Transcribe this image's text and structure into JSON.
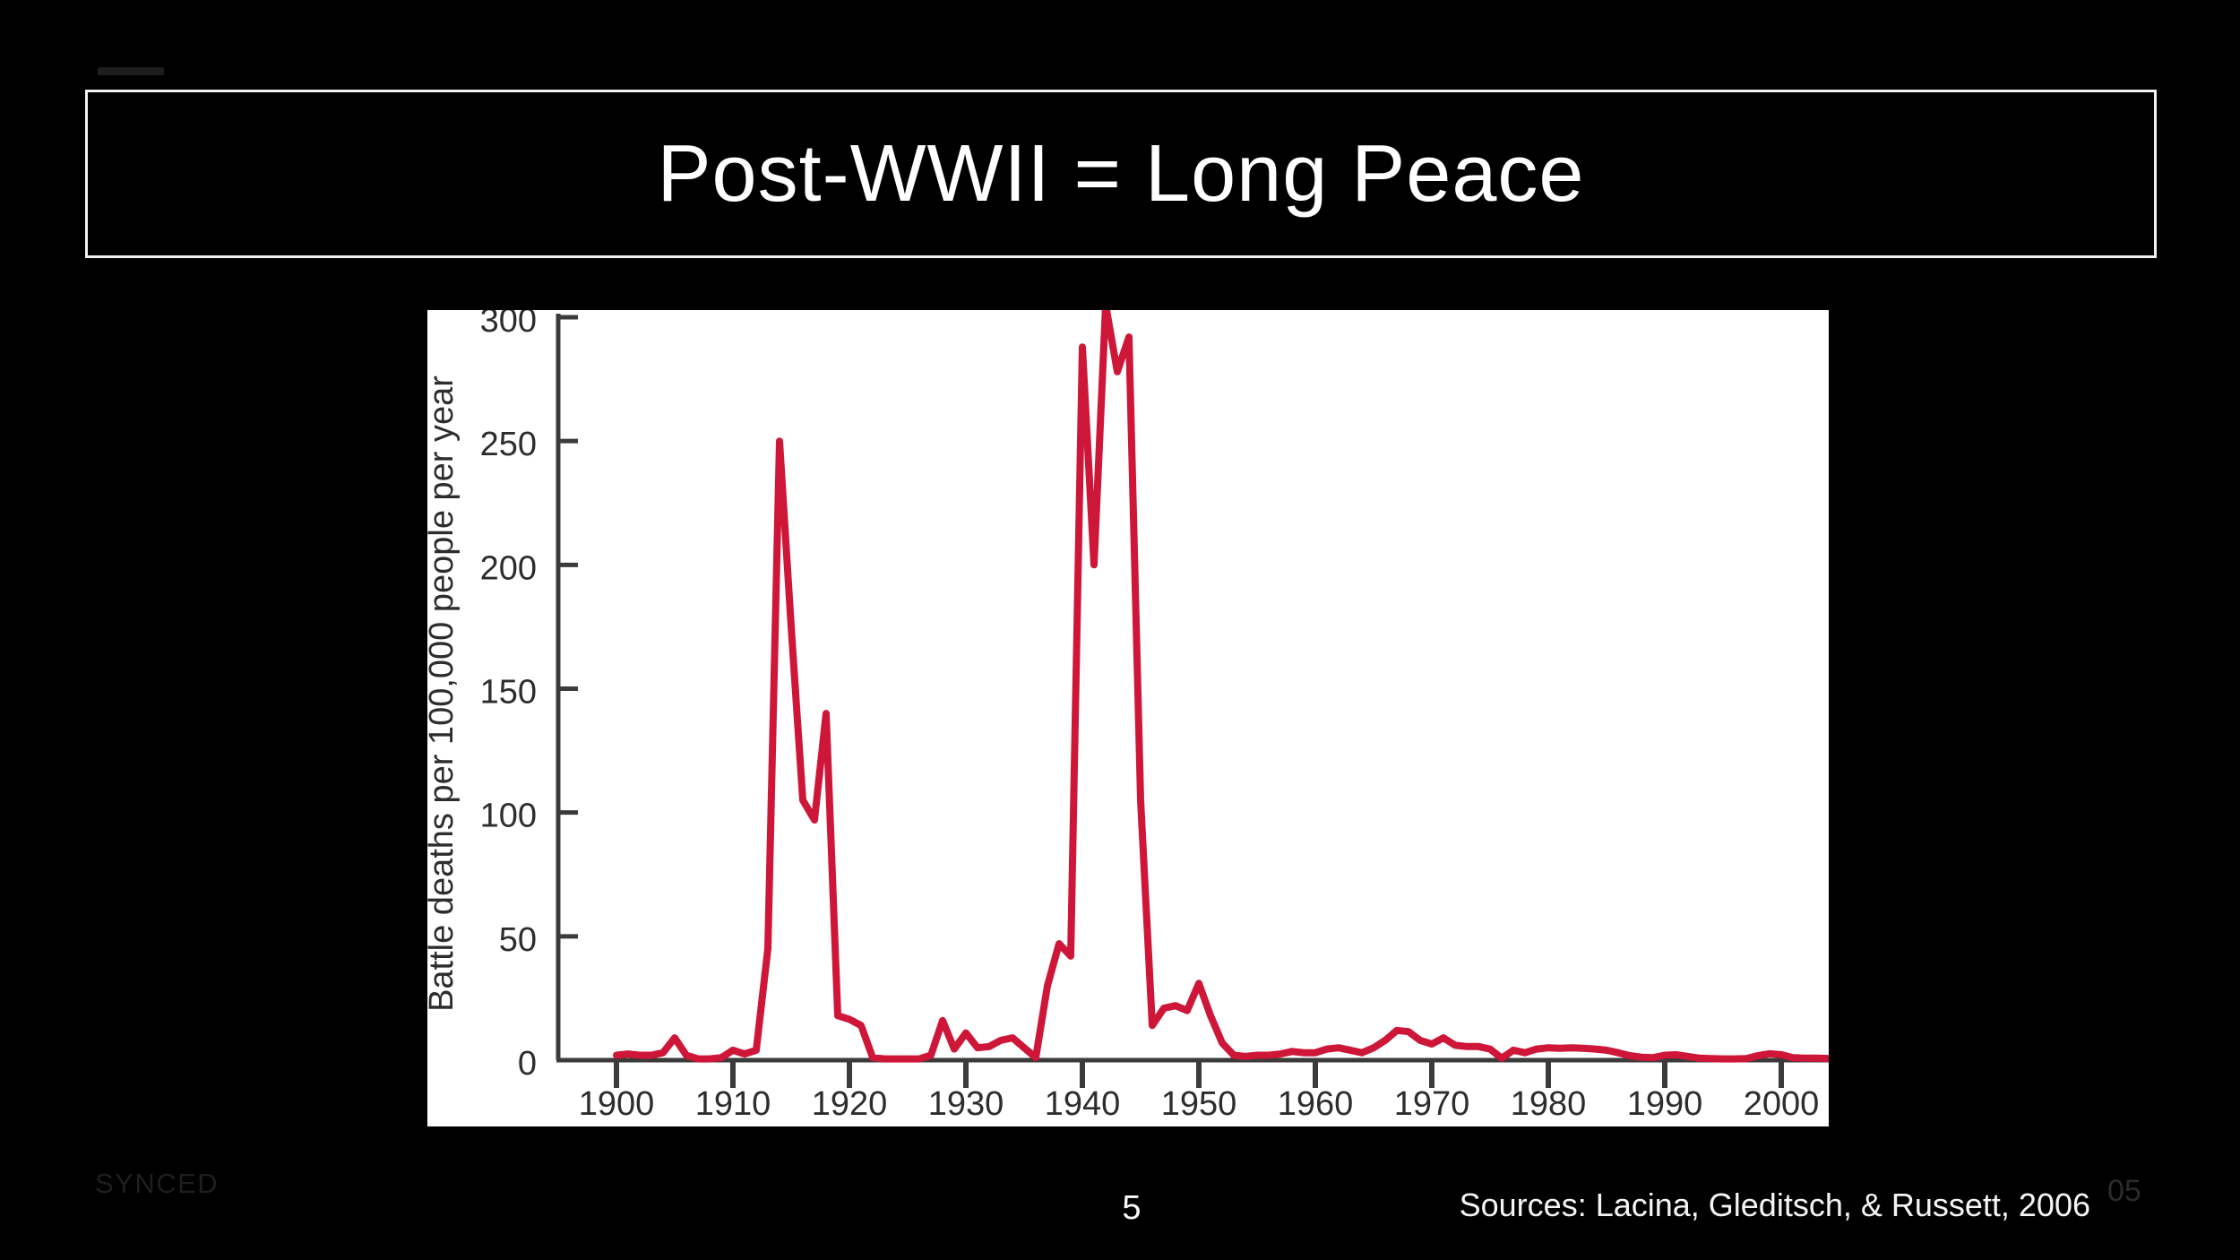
{
  "slide": {
    "title": "Post-WWII = Long Peace",
    "page_number": "5",
    "synced_label": "SYNCED",
    "slide_code": "05",
    "source_note": "Sources: Lacina, Gleditsch, & Russett, 2006"
  },
  "colors": {
    "background": "#000000",
    "title_text": "#ffffff",
    "title_border": "#f2f2f2",
    "chart_background": "#ffffff",
    "line": "#ce1638",
    "axis": "#3b3b3b",
    "chart_text": "#2d2d2d",
    "footer_dim": "#1e1e1e"
  },
  "chart_data": {
    "type": "line",
    "title": "",
    "xlabel": "",
    "ylabel": "Battle deaths per 100,000 people per year",
    "x_ticks": [
      1900,
      1910,
      1920,
      1930,
      1940,
      1950,
      1960,
      1970,
      1980,
      1990,
      2000
    ],
    "y_ticks": [
      0,
      50,
      100,
      150,
      200,
      250,
      300
    ],
    "xlim": [
      1895,
      2004
    ],
    "ylim": [
      0,
      305
    ],
    "grid": false,
    "legend": false,
    "line_color": "#ce1638",
    "series": [
      {
        "name": "Battle deaths per 100,000 people per year",
        "x": [
          1900,
          1901,
          1902,
          1903,
          1904,
          1905,
          1906,
          1907,
          1908,
          1909,
          1910,
          1911,
          1912,
          1913,
          1914,
          1915,
          1916,
          1917,
          1918,
          1919,
          1920,
          1921,
          1922,
          1923,
          1924,
          1925,
          1926,
          1927,
          1928,
          1929,
          1930,
          1931,
          1932,
          1933,
          1934,
          1935,
          1936,
          1937,
          1938,
          1939,
          1940,
          1941,
          1942,
          1943,
          1944,
          1945,
          1946,
          1947,
          1948,
          1949,
          1950,
          1951,
          1952,
          1953,
          1954,
          1955,
          1956,
          1957,
          1958,
          1959,
          1960,
          1961,
          1962,
          1963,
          1964,
          1965,
          1966,
          1967,
          1968,
          1969,
          1970,
          1971,
          1972,
          1973,
          1974,
          1975,
          1976,
          1977,
          1978,
          1979,
          1980,
          1981,
          1982,
          1983,
          1984,
          1985,
          1986,
          1987,
          1988,
          1989,
          1990,
          1991,
          1992,
          1993,
          1994,
          1995,
          1996,
          1997,
          1998,
          1999,
          2000,
          2001,
          2002,
          2003,
          2004
        ],
        "y": [
          2,
          2.5,
          2,
          2,
          3,
          9,
          2,
          0.5,
          0.5,
          1,
          4,
          2.5,
          4,
          45,
          250,
          175,
          105,
          97,
          140,
          18,
          16.5,
          14,
          1,
          0.5,
          0.5,
          0.5,
          0.5,
          2,
          16,
          4.5,
          11,
          5,
          5.5,
          8,
          9,
          5,
          1,
          30,
          47,
          42,
          288,
          200,
          305,
          278,
          292,
          105,
          14,
          21,
          22,
          20,
          31,
          18,
          7,
          2,
          1.5,
          2,
          2,
          2.5,
          3.5,
          3,
          3,
          4.5,
          5,
          4,
          3,
          5,
          8,
          12,
          11.5,
          8,
          6.5,
          9,
          6,
          5.5,
          5.5,
          4.5,
          0.8,
          4,
          3,
          4.5,
          5,
          4.8,
          5,
          4.8,
          4.5,
          4,
          3,
          1.8,
          1.2,
          1,
          2,
          2.2,
          1.5,
          0.8,
          0.6,
          0.5,
          0.5,
          0.6,
          1.8,
          2.6,
          2.2,
          1,
          0.8,
          0.8,
          0.7
        ]
      }
    ]
  }
}
